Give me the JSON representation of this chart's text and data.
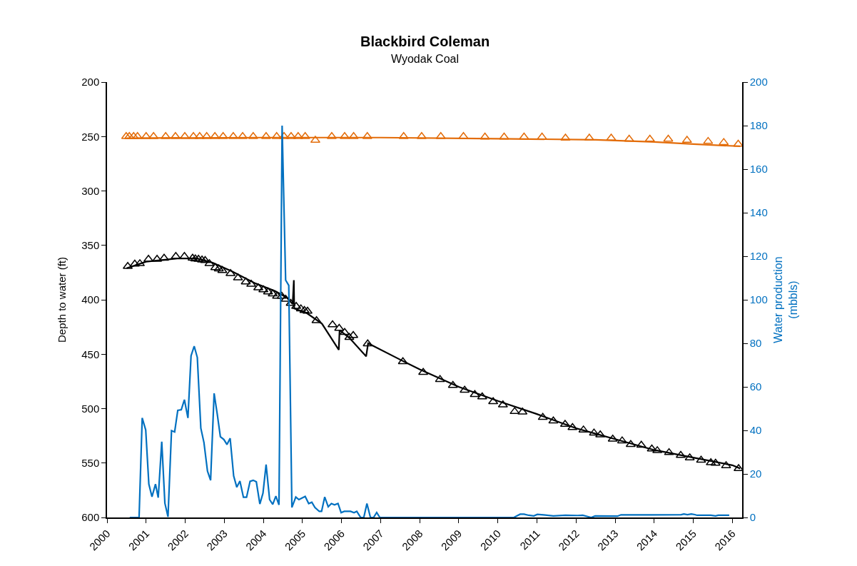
{
  "chart_data": {
    "type": "line",
    "title": "Blackbird Coleman",
    "subtitle": "Wyodak Coal",
    "ylabel": "Depth to water (ft)",
    "y2label": "Water production\n(mbbls)",
    "xlim": [
      2000,
      2016.25
    ],
    "xticks": [
      2000,
      2001,
      2002,
      2003,
      2004,
      2005,
      2006,
      2007,
      2008,
      2009,
      2010,
      2011,
      2012,
      2013,
      2014,
      2015,
      2016
    ],
    "ylim": [
      600,
      200
    ],
    "yticks": [
      200,
      250,
      300,
      350,
      400,
      450,
      500,
      550,
      600
    ],
    "y2lim": [
      0,
      200
    ],
    "y2ticks": [
      0,
      20,
      40,
      60,
      80,
      100,
      120,
      140,
      160,
      180,
      200
    ],
    "series": [
      {
        "color": "#e36c09",
        "x": [
          2000.5,
          2004.0,
          2007.0,
          2010.0,
          2012.5,
          2014.0,
          2015.0,
          2016.2
        ],
        "values": [
          251.5,
          251,
          251,
          252,
          253,
          255,
          257,
          259
        ]
      },
      {
        "type": "scatter",
        "marker": "triangle",
        "color": "#e36c09",
        "x": [
          2000.49,
          2000.57,
          2000.68,
          2000.78,
          2001.0,
          2001.19,
          2001.5,
          2001.75,
          2001.99,
          2002.21,
          2002.37,
          2002.55,
          2002.76,
          2002.97,
          2003.23,
          2003.47,
          2003.74,
          2004.07,
          2004.34,
          2004.53,
          2004.71,
          2004.89,
          2005.07,
          2005.33,
          2005.75,
          2006.08,
          2006.31,
          2006.66,
          2007.59,
          2008.05,
          2008.54,
          2009.12,
          2009.67,
          2010.16,
          2010.67,
          2011.13,
          2011.73,
          2012.34,
          2012.9,
          2013.36,
          2013.89,
          2014.36,
          2014.84,
          2015.38,
          2015.78,
          2016.15
        ],
        "values": [
          250,
          250,
          250,
          250,
          250,
          250,
          250,
          250,
          250,
          250,
          250,
          250,
          250,
          250,
          250,
          250,
          250,
          250,
          250,
          250,
          250,
          250,
          250,
          253.5,
          250,
          250,
          250,
          250,
          250,
          250,
          250,
          250,
          250.5,
          250.5,
          250.5,
          250.5,
          251.5,
          251.5,
          251.5,
          252.5,
          252.5,
          252.5,
          253.5,
          254.5,
          255.5,
          257
        ]
      },
      {
        "color": "#000000",
        "x": [
          2000.5,
          2001.0,
          2001.8,
          2002.3,
          2002.7,
          2003.2,
          2003.8,
          2004.3,
          2004.6,
          2004.75,
          2004.78,
          2004.79,
          2005.1,
          2005.5,
          2005.93,
          2005.95,
          2006.2,
          2006.63,
          2006.68,
          2007.5,
          2008.0,
          2009.0,
          2010.0,
          2011.0,
          2012.0,
          2012.5,
          2013.0,
          2014.0,
          2015.0,
          2016.0,
          2016.2
        ],
        "values": [
          371,
          365,
          362,
          362,
          366,
          374,
          385,
          392,
          398,
          404,
          382,
          408,
          412,
          422,
          446,
          428,
          435,
          452,
          440,
          455,
          464,
          480,
          493,
          505,
          518,
          523,
          528,
          538,
          545,
          552,
          555
        ]
      },
      {
        "type": "scatter",
        "marker": "triangle",
        "color": "#000000",
        "x": [
          2000.53,
          2000.71,
          2000.84,
          2001.06,
          2001.28,
          2001.46,
          2001.76,
          2001.98,
          2002.19,
          2002.26,
          2002.34,
          2002.43,
          2002.51,
          2002.62,
          2002.77,
          2002.86,
          2002.95,
          2003.16,
          2003.35,
          2003.55,
          2003.69,
          2003.87,
          2004.0,
          2004.12,
          2004.24,
          2004.35,
          2004.47,
          2004.57,
          2004.7,
          2004.84,
          2004.96,
          2005.05,
          2005.13,
          2005.36,
          2005.77,
          2005.94,
          2006.08,
          2006.2,
          2006.3,
          2006.67,
          2007.57,
          2008.09,
          2008.52,
          2008.85,
          2009.15,
          2009.41,
          2009.6,
          2009.88,
          2010.13,
          2010.43,
          2010.63,
          2011.15,
          2011.42,
          2011.72,
          2011.91,
          2012.19,
          2012.46,
          2012.62,
          2012.94,
          2013.18,
          2013.4,
          2013.67,
          2013.94,
          2014.08,
          2014.38,
          2014.68,
          2014.91,
          2015.2,
          2015.45,
          2015.57,
          2015.84,
          2016.16
        ],
        "values": [
          369.4,
          367.2,
          366.8,
          362.8,
          362.8,
          361.8,
          360.2,
          360.2,
          361.8,
          362.4,
          362.8,
          363.5,
          363.9,
          366.8,
          370.5,
          371.6,
          373.1,
          375.9,
          379.9,
          383.6,
          385.8,
          389.0,
          390.8,
          392.8,
          394.6,
          396.7,
          396.7,
          399.5,
          403.3,
          406.1,
          408.3,
          409.8,
          410.5,
          419.2,
          423.0,
          426.2,
          430.0,
          434.6,
          432.8,
          440.5,
          456.9,
          466.7,
          473.2,
          478.7,
          483.1,
          487.0,
          489.2,
          493.6,
          496.6,
          502.7,
          503.1,
          508.1,
          511.3,
          514.4,
          517.4,
          519.6,
          522.4,
          524.1,
          528.0,
          529.6,
          533.0,
          533.6,
          537.0,
          538.6,
          540.4,
          542.9,
          545.2,
          547.4,
          549.7,
          550.2,
          552.4,
          555.1
        ]
      },
      {
        "axis": "y2",
        "color": "#0070c0",
        "x": [
          2000.58,
          2000.82,
          2000.9,
          2000.99,
          2001.07,
          2001.15,
          2001.24,
          2001.31,
          2001.4,
          2001.48,
          2001.56,
          2001.65,
          2001.73,
          2001.81,
          2001.9,
          2001.98,
          2002.07,
          2002.15,
          2002.23,
          2002.31,
          2002.4,
          2002.48,
          2002.57,
          2002.65,
          2002.74,
          2002.82,
          2002.9,
          2002.99,
          2003.07,
          2003.15,
          2003.24,
          2003.32,
          2003.4,
          2003.49,
          2003.57,
          2003.66,
          2003.74,
          2003.82,
          2003.91,
          2003.99,
          2004.07,
          2004.16,
          2004.24,
          2004.32,
          2004.4,
          2004.48,
          2004.57,
          2004.65,
          2004.73,
          2004.83,
          2004.91,
          2005.07,
          2005.16,
          2005.24,
          2005.32,
          2005.43,
          2005.49,
          2005.57,
          2005.66,
          2005.74,
          2005.82,
          2005.91,
          2005.99,
          2006.07,
          2006.23,
          2006.32,
          2006.39,
          2006.49,
          2006.57,
          2006.65,
          2006.74,
          2006.82,
          2006.9,
          2006.98,
          2010.41,
          2010.57,
          2010.67,
          2010.79,
          2010.92,
          2011.01,
          2011.17,
          2011.42,
          2011.73,
          2012.04,
          2012.17,
          2012.3,
          2012.39,
          2012.49,
          2013.06,
          2013.15,
          2013.94,
          2014.69,
          2014.76,
          2014.85,
          2014.95,
          2015.04,
          2015.1,
          2015.45,
          2015.57,
          2015.64,
          2015.92
        ],
        "values": [
          0,
          0,
          45.7,
          40.2,
          15.3,
          9.5,
          15.3,
          9.1,
          34.8,
          6.6,
          0.3,
          39.9,
          39.3,
          49.2,
          49.5,
          54.1,
          45.7,
          74.3,
          78.7,
          73.5,
          41,
          34.4,
          21.3,
          17.1,
          57,
          47.5,
          37.1,
          35.8,
          33.5,
          36.4,
          19.1,
          13.9,
          16.7,
          9.3,
          9.3,
          16.6,
          17.1,
          16.4,
          6.2,
          11.1,
          24.3,
          8.2,
          6,
          9.8,
          5.8,
          180,
          109,
          106.6,
          4.6,
          9.4,
          8.2,
          9.7,
          6.4,
          7,
          4.6,
          2.8,
          2.8,
          9.4,
          4.9,
          6.4,
          5.8,
          6.4,
          2.2,
          2.8,
          2.8,
          2.2,
          2.8,
          0,
          0,
          6.4,
          0,
          0,
          2.3,
          0,
          0,
          1.5,
          1.5,
          1,
          0.7,
          1.4,
          1.2,
          0.7,
          1,
          0.9,
          1,
          0.4,
          0,
          0.7,
          0.6,
          1.2,
          1.2,
          1.3,
          1.6,
          1.3,
          1.6,
          1.3,
          1,
          1,
          0.7,
          1,
          1
        ]
      }
    ]
  }
}
